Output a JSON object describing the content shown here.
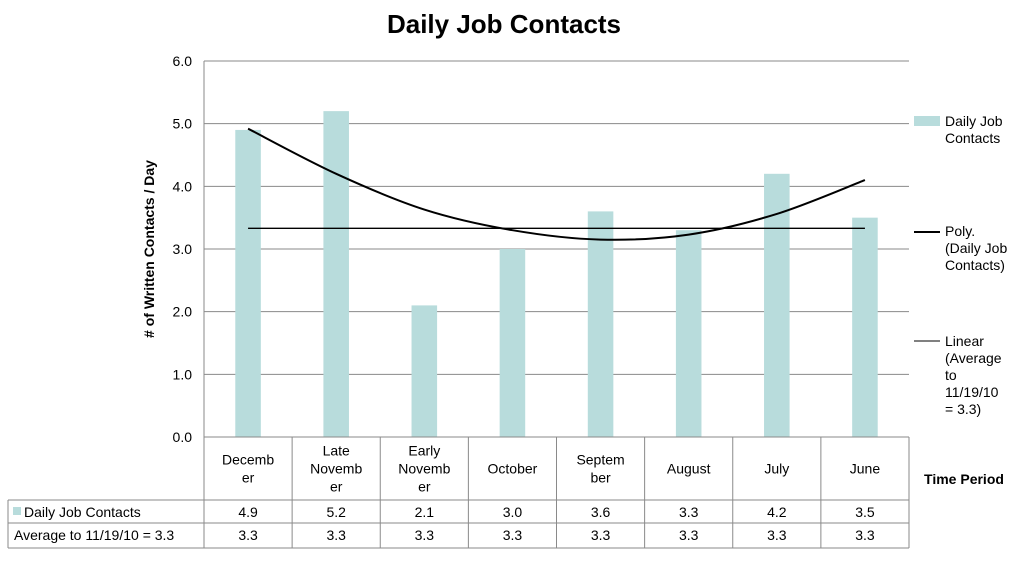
{
  "chart_data": {
    "type": "bar",
    "title": "Daily Job Contacts",
    "ylabel": "# of  Written Contacts / Day",
    "xlabel": "Time Period",
    "ylim": [
      0,
      6
    ],
    "yticks": [
      "0.0",
      "1.0",
      "2.0",
      "3.0",
      "4.0",
      "5.0",
      "6.0"
    ],
    "grid": true,
    "legend_position": "right",
    "categories": [
      [
        "Decemb",
        "er"
      ],
      [
        "Late",
        "Novemb",
        "er"
      ],
      [
        "Early",
        "Novemb",
        "er"
      ],
      [
        "October"
      ],
      [
        "Septem",
        "ber"
      ],
      [
        "August"
      ],
      [
        "July"
      ],
      [
        "June"
      ]
    ],
    "series": [
      {
        "name": "Daily Job Contacts",
        "table_label": "Daily Job Contacts",
        "legend_lines": [
          "Daily Job",
          "Contacts"
        ],
        "kind": "bar",
        "color": "#b8dcdc",
        "values": [
          4.9,
          5.2,
          2.1,
          3.0,
          3.6,
          3.3,
          4.2,
          3.5
        ],
        "labels": [
          "4.9",
          "5.2",
          "2.1",
          "3.0",
          "3.6",
          "3.3",
          "4.2",
          "3.5"
        ]
      },
      {
        "name": "Average to 11/19/10 = 3.3",
        "table_label": "Average to 11/19/10 = 3.3",
        "kind": "line",
        "color": "#000000",
        "values": [
          3.3,
          3.3,
          3.3,
          3.3,
          3.3,
          3.3,
          3.3,
          3.3
        ],
        "labels": [
          "3.3",
          "3.3",
          "3.3",
          "3.3",
          "3.3",
          "3.3",
          "3.3",
          "3.3"
        ]
      }
    ],
    "trendlines": [
      {
        "name": "Poly. (Daily Job Contacts)",
        "legend_lines": [
          "Poly.",
          "(Daily Job",
          "Contacts)"
        ],
        "type": "polynomial",
        "color": "#000000",
        "values": [
          4.92,
          4.2,
          3.63,
          3.3,
          3.15,
          3.23,
          3.56,
          4.1
        ]
      },
      {
        "name": "Linear (Average to 11/19/10 = 3.3)",
        "legend_lines": [
          "Linear",
          "(Average",
          "to",
          "11/19/10",
          "= 3.3)"
        ],
        "type": "linear",
        "color": "#000000",
        "values": [
          3.33,
          3.33,
          3.33,
          3.33,
          3.33,
          3.33,
          3.33,
          3.33
        ]
      }
    ]
  }
}
